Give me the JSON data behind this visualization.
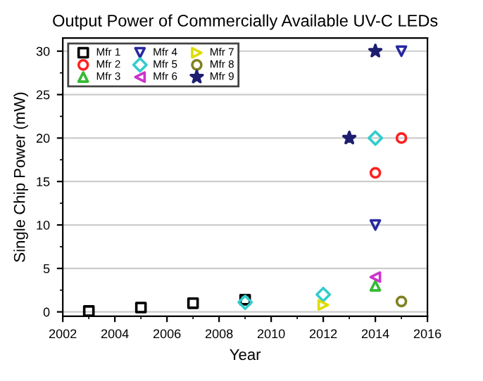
{
  "chart_data": {
    "type": "scatter",
    "title": "Output Power of Commercially Available UV-C LEDs",
    "xlabel": "Year",
    "ylabel": "Single Chip Power (mW)",
    "xlim": [
      2002,
      2016
    ],
    "xticks": [
      2002,
      2004,
      2006,
      2008,
      2010,
      2012,
      2014,
      2016
    ],
    "ylim": [
      -0.5,
      31.5
    ],
    "yticks": [
      0,
      5,
      10,
      15,
      20,
      25,
      30
    ],
    "grid": "y",
    "legend": "top left",
    "series": [
      {
        "name": "Mfr 1",
        "color": "#000000",
        "marker": "square",
        "x": [
          2003,
          2005,
          2007,
          2009
        ],
        "values": [
          0.1,
          0.5,
          1.0,
          1.4
        ]
      },
      {
        "name": "Mfr 2",
        "color": "#ff2020",
        "marker": "circle",
        "x": [
          2014,
          2015
        ],
        "values": [
          16,
          20
        ]
      },
      {
        "name": "Mfr 3",
        "color": "#33bb33",
        "marker": "triangle",
        "x": [
          2014
        ],
        "values": [
          3
        ]
      },
      {
        "name": "Mfr 4",
        "color": "#2828a0",
        "marker": "triangle_down",
        "x": [
          2014,
          2015
        ],
        "values": [
          10,
          30
        ]
      },
      {
        "name": "Mfr 5",
        "color": "#33cccc",
        "marker": "diamond",
        "x": [
          2009,
          2012,
          2014
        ],
        "values": [
          1.1,
          2,
          20
        ]
      },
      {
        "name": "Mfr 6",
        "color": "#cc33cc",
        "marker": "triangle_left",
        "x": [
          2014
        ],
        "values": [
          4
        ]
      },
      {
        "name": "Mfr 7",
        "color": "#dddd00",
        "marker": "triangle_right",
        "x": [
          2012
        ],
        "values": [
          0.8
        ]
      },
      {
        "name": "Mfr 8",
        "color": "#808020",
        "marker": "circle",
        "x": [
          2015
        ],
        "values": [
          1.2
        ]
      },
      {
        "name": "Mfr 9",
        "color": "#1e1e70",
        "marker": "star",
        "x": [
          2013,
          2014
        ],
        "values": [
          20,
          30
        ]
      }
    ]
  }
}
